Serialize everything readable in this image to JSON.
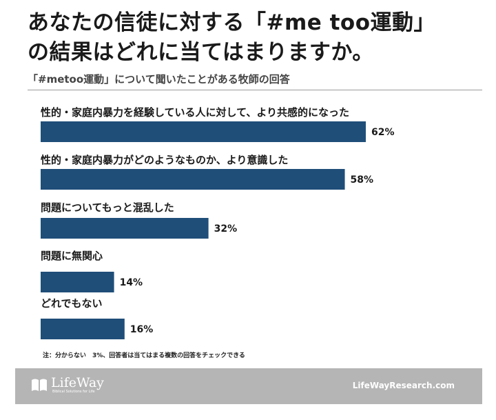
{
  "title_line1": "あなたの信徒に対する「#me too運動」",
  "title_line2": "の結果はどれに当てはまりますか。",
  "subtitle": "「#metoo運動」について聞いたことがある牧師の回答",
  "note": "注：分からない　3%、回答者は当てはまる複数の回答をチェックできる",
  "footer": {
    "logo_name": "LifeWay",
    "logo_tagline": "Biblical Solutions for Life",
    "site": "LifeWayResearch.com"
  },
  "colors": {
    "bar": "#1f4e79",
    "footer_bg": "#b5b5b5"
  },
  "chart_data": {
    "type": "bar",
    "orientation": "horizontal",
    "categories": [
      "性的・家庭内暴力を経験している人に対して、より共感的になった",
      "性的・家庭内暴力がどのようなものか、より意識した",
      "問題についてもっと混乱した",
      "問題に無関心",
      "どれでもない"
    ],
    "values": [
      62,
      58,
      32,
      14,
      16
    ],
    "value_labels": [
      "62%",
      "58%",
      "32%",
      "14%",
      "16%"
    ],
    "unit": "%",
    "xlim": [
      0,
      100
    ],
    "grid": false,
    "legend": "none"
  }
}
